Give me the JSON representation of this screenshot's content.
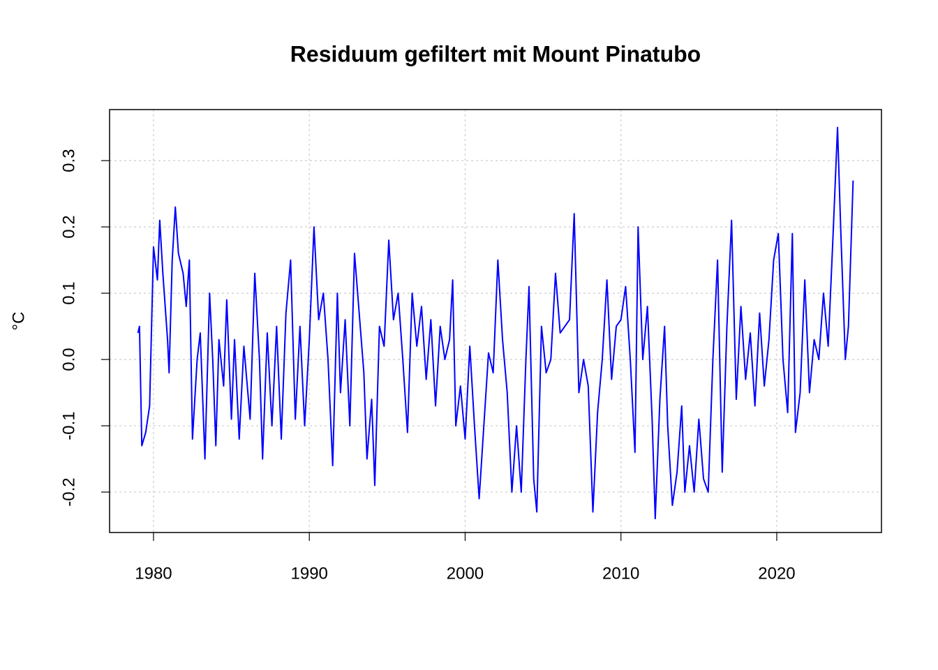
{
  "chart_data": {
    "type": "line",
    "title": "Residuum gefiltert mit Mount Pinatubo",
    "ylabel": "°C",
    "xlim": [
      1977.18,
      2026.72
    ],
    "ylim": [
      -0.261,
      0.377
    ],
    "xticks": [
      1980,
      1990,
      2000,
      2010,
      2020
    ],
    "yticks": [
      -0.2,
      -0.1,
      {
        "value": 0,
        "label": "0.0"
      },
      0.1,
      0.2,
      0.3
    ],
    "grid": true,
    "series": [
      {
        "color": "#0000ff",
        "x": [
          1979.0,
          1979.1,
          1979.25,
          1979.5,
          1979.75,
          1980.0,
          1980.25,
          1980.4,
          1980.6,
          1980.9,
          1981.0,
          1981.2,
          1981.4,
          1981.6,
          1981.9,
          1982.1,
          1982.3,
          1982.5,
          1982.8,
          1983.0,
          1983.3,
          1983.6,
          1983.8,
          1984.0,
          1984.2,
          1984.5,
          1984.7,
          1985.0,
          1985.2,
          1985.5,
          1985.8,
          1986.2,
          1986.5,
          1986.8,
          1987.0,
          1987.3,
          1987.6,
          1987.9,
          1988.2,
          1988.5,
          1988.8,
          1989.1,
          1989.4,
          1989.7,
          1990.0,
          1990.3,
          1990.6,
          1990.9,
          1991.2,
          1991.5,
          1991.8,
          1992.0,
          1992.3,
          1992.6,
          1992.9,
          1993.2,
          1993.5,
          1993.7,
          1994.0,
          1994.2,
          1994.5,
          1994.8,
          1995.1,
          1995.4,
          1995.7,
          1996.0,
          1996.3,
          1996.6,
          1996.9,
          1997.2,
          1997.5,
          1997.8,
          1998.1,
          1998.4,
          1998.7,
          1999.0,
          1999.2,
          1999.4,
          1999.7,
          2000.0,
          2000.3,
          2000.6,
          2000.9,
          2001.2,
          2001.5,
          2001.8,
          2002.1,
          2002.4,
          2002.7,
          2003.0,
          2003.3,
          2003.6,
          2003.9,
          2004.1,
          2004.4,
          2004.6,
          2004.9,
          2005.2,
          2005.5,
          2005.8,
          2006.1,
          2006.4,
          2006.7,
          2007.0,
          2007.3,
          2007.6,
          2007.9,
          2008.2,
          2008.5,
          2008.8,
          2009.1,
          2009.4,
          2009.7,
          2010.0,
          2010.3,
          2010.6,
          2010.9,
          2011.1,
          2011.4,
          2011.7,
          2012.0,
          2012.2,
          2012.5,
          2012.8,
          2013.0,
          2013.3,
          2013.6,
          2013.9,
          2014.1,
          2014.4,
          2014.7,
          2015.0,
          2015.3,
          2015.6,
          2015.9,
          2016.2,
          2016.5,
          2016.8,
          2017.1,
          2017.4,
          2017.7,
          2018.0,
          2018.3,
          2018.6,
          2018.9,
          2019.2,
          2019.5,
          2019.8,
          2020.1,
          2020.4,
          2020.7,
          2021.0,
          2021.2,
          2021.5,
          2021.8,
          2022.1,
          2022.4,
          2022.7,
          2023.0,
          2023.3,
          2023.6,
          2023.9,
          2024.1,
          2024.4,
          2024.6,
          2024.9
        ],
        "values": [
          0.04,
          0.05,
          -0.13,
          -0.11,
          -0.07,
          0.17,
          0.12,
          0.21,
          0.13,
          0.03,
          -0.02,
          0.15,
          0.23,
          0.16,
          0.13,
          0.08,
          0.15,
          -0.12,
          0.0,
          0.04,
          -0.15,
          0.1,
          0.0,
          -0.13,
          0.03,
          -0.04,
          0.09,
          -0.09,
          0.03,
          -0.12,
          0.02,
          -0.09,
          0.13,
          0.0,
          -0.15,
          0.04,
          -0.1,
          0.05,
          -0.12,
          0.07,
          0.15,
          -0.09,
          0.05,
          -0.1,
          0.03,
          0.2,
          0.06,
          0.1,
          0.0,
          -0.16,
          0.1,
          -0.05,
          0.06,
          -0.1,
          0.16,
          0.07,
          -0.02,
          -0.15,
          -0.06,
          -0.19,
          0.05,
          0.02,
          0.18,
          0.06,
          0.1,
          0.0,
          -0.11,
          0.1,
          0.02,
          0.08,
          -0.03,
          0.06,
          -0.07,
          0.05,
          0.0,
          0.03,
          0.12,
          -0.1,
          -0.04,
          -0.12,
          0.02,
          -0.1,
          -0.21,
          -0.1,
          0.01,
          -0.02,
          0.15,
          0.03,
          -0.05,
          -0.2,
          -0.1,
          -0.2,
          0.0,
          0.11,
          -0.18,
          -0.23,
          0.05,
          -0.02,
          0.0,
          0.13,
          0.04,
          0.05,
          0.06,
          0.22,
          -0.05,
          0.0,
          -0.04,
          -0.23,
          -0.08,
          0.0,
          0.12,
          -0.03,
          0.05,
          0.06,
          0.11,
          0.0,
          -0.14,
          0.2,
          0.0,
          0.08,
          -0.09,
          -0.24,
          -0.06,
          0.05,
          -0.1,
          -0.22,
          -0.17,
          -0.07,
          -0.2,
          -0.13,
          -0.2,
          -0.09,
          -0.18,
          -0.2,
          0.0,
          0.15,
          -0.17,
          0.05,
          0.21,
          -0.06,
          0.08,
          -0.03,
          0.04,
          -0.07,
          0.07,
          -0.04,
          0.03,
          0.15,
          0.19,
          0.0,
          -0.08,
          0.19,
          -0.11,
          -0.05,
          0.12,
          -0.05,
          0.03,
          0.0,
          0.1,
          0.02,
          0.18,
          0.35,
          0.2,
          0.0,
          0.05,
          0.27
        ]
      }
    ]
  }
}
